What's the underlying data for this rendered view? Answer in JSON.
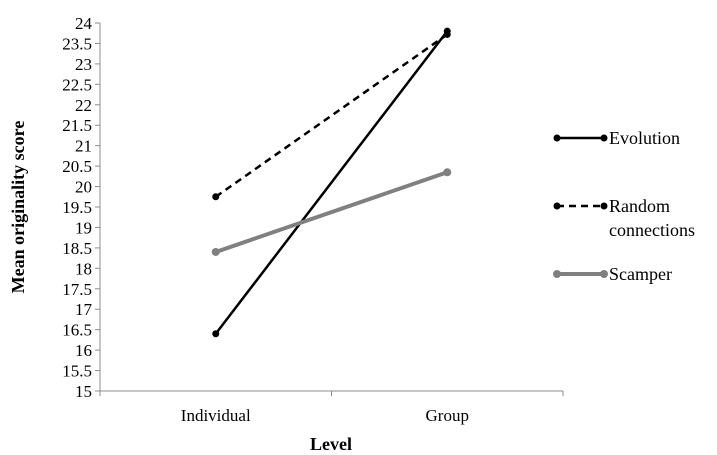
{
  "chart_data": {
    "type": "line",
    "xlabel": "Level",
    "ylabel": "Mean originality score",
    "categories": [
      "Individual",
      "Group"
    ],
    "ylim": [
      15,
      24
    ],
    "yticks": [
      "15",
      "15.5",
      "16",
      "16.5",
      "17",
      "17.5",
      "18",
      "18.5",
      "19",
      "19.5",
      "20",
      "20.5",
      "21",
      "21.5",
      "22",
      "22.5",
      "23",
      "23.5",
      "24"
    ],
    "grid": false,
    "legend_position": "right",
    "series": [
      {
        "name": "Evolution",
        "values": [
          16.4,
          23.8
        ],
        "color": "#000000",
        "style": "solid"
      },
      {
        "name": "Random connections",
        "values": [
          19.75,
          23.72
        ],
        "color": "#000000",
        "style": "dashed"
      },
      {
        "name": "Scamper",
        "values": [
          18.4,
          20.35
        ],
        "color": "#808080",
        "style": "solid"
      }
    ],
    "legend_lines": [
      [
        "Evolution"
      ],
      [
        "Random",
        "connections"
      ],
      [
        "Scamper"
      ]
    ]
  }
}
